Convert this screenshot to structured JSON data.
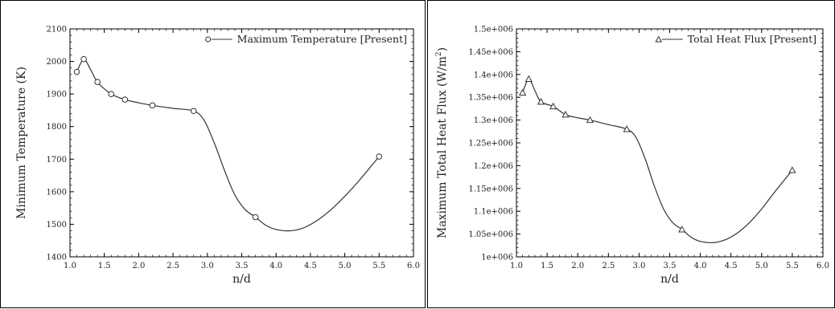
{
  "chart_data": [
    {
      "type": "line",
      "xlabel": "n/d",
      "ylabel": "Minimum Temperature (K)",
      "xlim": [
        1.0,
        6.0
      ],
      "ylim": [
        1400,
        2100
      ],
      "xticks": [
        1.0,
        1.5,
        2.0,
        2.5,
        3.0,
        3.5,
        4.0,
        4.5,
        5.0,
        5.5,
        6.0
      ],
      "xtick_labels": [
        "1.0",
        "1.5",
        "2.0",
        "2.5",
        "3.0",
        "3.5",
        "4.0",
        "4.5",
        "5.0",
        "5.5",
        "6.0"
      ],
      "yticks": [
        1400,
        1500,
        1600,
        1700,
        1800,
        1900,
        2000,
        2100
      ],
      "ytick_labels": [
        "1400",
        "1500",
        "1600",
        "1700",
        "1800",
        "1900",
        "2000",
        "2100"
      ],
      "legend": {
        "label": "Maximum Temperature [Present]",
        "placement": "top-right",
        "marker": "circle"
      },
      "grid": false,
      "series": [
        {
          "name": "Maximum Temperature [Present]",
          "marker": "circle",
          "x": [
            1.1,
            1.2,
            1.4,
            1.6,
            1.8,
            2.2,
            2.8,
            3.7,
            5.5
          ],
          "y": [
            1968,
            2007,
            1937,
            1900,
            1883,
            1865,
            1848,
            1522,
            1708
          ]
        }
      ],
      "curve": {
        "x": [
          1.1,
          1.2,
          1.3,
          1.4,
          1.6,
          1.8,
          2.0,
          2.2,
          2.5,
          2.8,
          2.95,
          3.1,
          3.25,
          3.4,
          3.55,
          3.7,
          3.85,
          4.0,
          4.2,
          4.4,
          4.6,
          4.8,
          5.0,
          5.2,
          5.5
        ],
        "y": [
          1968,
          2007,
          1975,
          1937,
          1900,
          1883,
          1873,
          1865,
          1856,
          1848,
          1820,
          1750,
          1665,
          1590,
          1545,
          1522,
          1497,
          1484,
          1480,
          1489,
          1512,
          1545,
          1586,
          1632,
          1708
        ]
      }
    },
    {
      "type": "line",
      "xlabel": "n/d",
      "ylabel": "Maximum Total Heat Flux (W/m",
      "ylabel_superscript": "2",
      "ylabel_suffix": ")",
      "xlim": [
        1.0,
        6.0
      ],
      "ylim": [
        1000000,
        1500000
      ],
      "xticks": [
        1.0,
        1.5,
        2.0,
        2.5,
        3.0,
        3.5,
        4.0,
        4.5,
        5.0,
        5.5,
        6.0
      ],
      "xtick_labels": [
        "1.0",
        "1.5",
        "2.0",
        "2.5",
        "3.0",
        "3.5",
        "4.0",
        "4.5",
        "5.0",
        "5.5",
        "6.0"
      ],
      "yticks": [
        1000000,
        1050000,
        1100000,
        1150000,
        1200000,
        1250000,
        1300000,
        1350000,
        1400000,
        1450000,
        1500000
      ],
      "ytick_labels": [
        "1e+006",
        "1.05e+006",
        "1.1e+006",
        "1.15e+006",
        "1.2e+006",
        "1.25e+006",
        "1.3e+006",
        "1.35e+006",
        "1.4e+006",
        "1.45e+006",
        "1.5e+006"
      ],
      "legend": {
        "label": "Total Heat Flux [Present]",
        "placement": "top-right",
        "marker": "triangle"
      },
      "grid": false,
      "series": [
        {
          "name": "Total Heat Flux [Present]",
          "marker": "triangle",
          "x": [
            1.1,
            1.2,
            1.4,
            1.6,
            1.8,
            2.2,
            2.8,
            3.7,
            5.5
          ],
          "y": [
            1360000,
            1390000,
            1340000,
            1330000,
            1312000,
            1300000,
            1280000,
            1060000,
            1190000
          ]
        }
      ],
      "curve": {
        "x": [
          1.1,
          1.2,
          1.3,
          1.4,
          1.6,
          1.8,
          2.0,
          2.2,
          2.5,
          2.8,
          2.95,
          3.1,
          3.25,
          3.4,
          3.55,
          3.7,
          3.85,
          4.0,
          4.2,
          4.4,
          4.6,
          4.8,
          5.0,
          5.2,
          5.5
        ],
        "y": [
          1360000,
          1390000,
          1365000,
          1340000,
          1330000,
          1312000,
          1305000,
          1300000,
          1290000,
          1280000,
          1262000,
          1215000,
          1155000,
          1105000,
          1075000,
          1060000,
          1043000,
          1034000,
          1031000,
          1037000,
          1052000,
          1075000,
          1105000,
          1140000,
          1190000
        ]
      }
    }
  ]
}
